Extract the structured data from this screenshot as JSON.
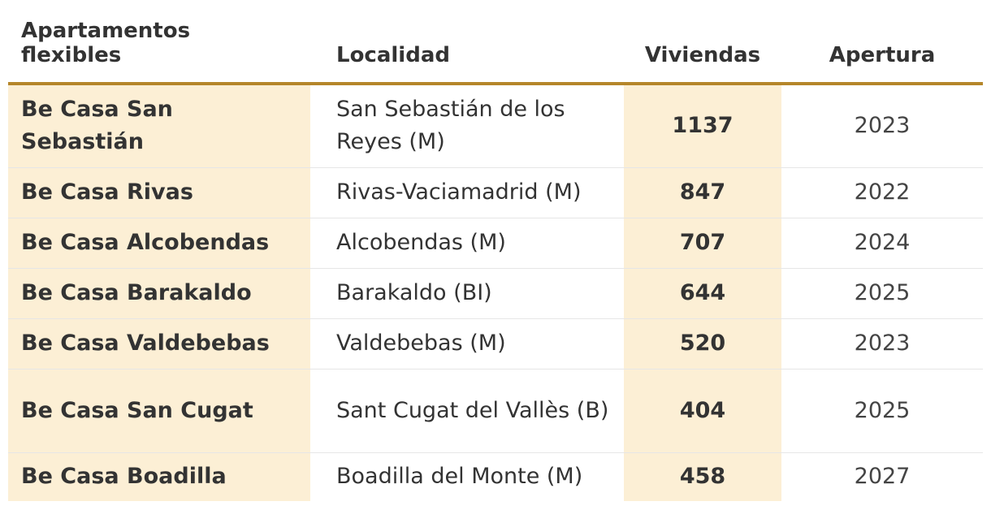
{
  "table": {
    "headers": {
      "name": "Apartamentos flexibles",
      "location": "Localidad",
      "units": "Viviendas",
      "opening": "Apertura"
    },
    "rows": [
      {
        "name": "Be Casa San Sebastián",
        "location": "San Sebastián de los Reyes (M)",
        "units": "1137",
        "opening": "2023"
      },
      {
        "name": "Be Casa Rivas",
        "location": "Rivas-Vaciamadrid (M)",
        "units": "847",
        "opening": "2022"
      },
      {
        "name": "Be Casa Alcobendas",
        "location": "Alcobendas (M)",
        "units": "707",
        "opening": "2024"
      },
      {
        "name": "Be Casa Barakaldo",
        "location": "Barakaldo (BI)",
        "units": "644",
        "opening": "2025"
      },
      {
        "name": "Be Casa Valdebebas",
        "location": "Valdebebas (M)",
        "units": "520",
        "opening": "2023"
      },
      {
        "name": "Be Casa San Cugat",
        "location": "Sant Cugat del Vallès (B)",
        "units": "404",
        "opening": "2025"
      },
      {
        "name": "Be Casa Boadilla",
        "location": "Boadilla del Monte (M)",
        "units": "458",
        "opening": "2027"
      }
    ],
    "colors": {
      "header_rule": "#b5862a",
      "highlight": "#fcefd5"
    }
  }
}
